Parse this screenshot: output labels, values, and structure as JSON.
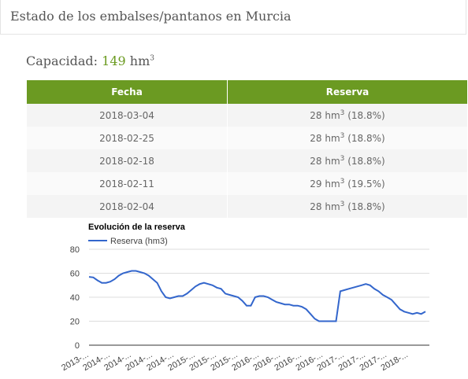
{
  "header": {
    "title": "Estado de los embalses/pantanos en Murcia"
  },
  "capacity": {
    "label": "Capacidad:",
    "value": "149",
    "unit": "hm",
    "sup": "3"
  },
  "table": {
    "columns": [
      "Fecha",
      "Reserva"
    ],
    "rows": [
      {
        "date": "2018-03-04",
        "amount": "28 hm",
        "sup": "3",
        "pct": "(18.8%)"
      },
      {
        "date": "2018-02-25",
        "amount": "28 hm",
        "sup": "3",
        "pct": "(18.8%)"
      },
      {
        "date": "2018-02-18",
        "amount": "28 hm",
        "sup": "3",
        "pct": "(18.8%)"
      },
      {
        "date": "2018-02-11",
        "amount": "29 hm",
        "sup": "3",
        "pct": "(19.5%)"
      },
      {
        "date": "2018-02-04",
        "amount": "28 hm",
        "sup": "3",
        "pct": "(18.8%)"
      }
    ]
  },
  "chart_data": {
    "type": "line",
    "title": "Evolución de la reserva",
    "categories": [
      "2013-...",
      null,
      null,
      null,
      null,
      "2014-...",
      null,
      null,
      null,
      null,
      "2014-...",
      null,
      null,
      null,
      null,
      "2014-...",
      null,
      null,
      null,
      null,
      "2014-...",
      null,
      null,
      null,
      null,
      "2015-...",
      null,
      null,
      null,
      null,
      "2015-...",
      null,
      null,
      null,
      null,
      "2015-...",
      null,
      null,
      null,
      null,
      "2016-...",
      null,
      null,
      null,
      null,
      "2016-...",
      null,
      null,
      null,
      null,
      "2016-...",
      null,
      null,
      null,
      null,
      "2016-...",
      null,
      null,
      null,
      null,
      "2017-...",
      null,
      null,
      null,
      null,
      "2017-...",
      null,
      null,
      null,
      null,
      "2017-...",
      null,
      null,
      null,
      null,
      "2018-...",
      null,
      null,
      null,
      null
    ],
    "series": [
      {
        "name": "Reserva (hm3)",
        "color": "#3366cc",
        "values": [
          57,
          56.5,
          54,
          52,
          52,
          53,
          55,
          58,
          60,
          61,
          62,
          62,
          61,
          60,
          58,
          55,
          52,
          45,
          40,
          39,
          40,
          41,
          41,
          43,
          46,
          49,
          51,
          52,
          51,
          50,
          48,
          47,
          43,
          42,
          41,
          40,
          37,
          33,
          33,
          40,
          41,
          41,
          40,
          38,
          36,
          35,
          34,
          34,
          33,
          33,
          32,
          30,
          26,
          22,
          20,
          20,
          20,
          20,
          20,
          45,
          46,
          47,
          48,
          49,
          50,
          51,
          50,
          47,
          45,
          42,
          40,
          38,
          34,
          30,
          28,
          27,
          26,
          27,
          26,
          28
        ]
      }
    ],
    "ylim": [
      0,
      80
    ],
    "yticks": [
      0,
      20,
      40,
      60,
      80
    ],
    "grid": true,
    "legend": "top-left"
  }
}
